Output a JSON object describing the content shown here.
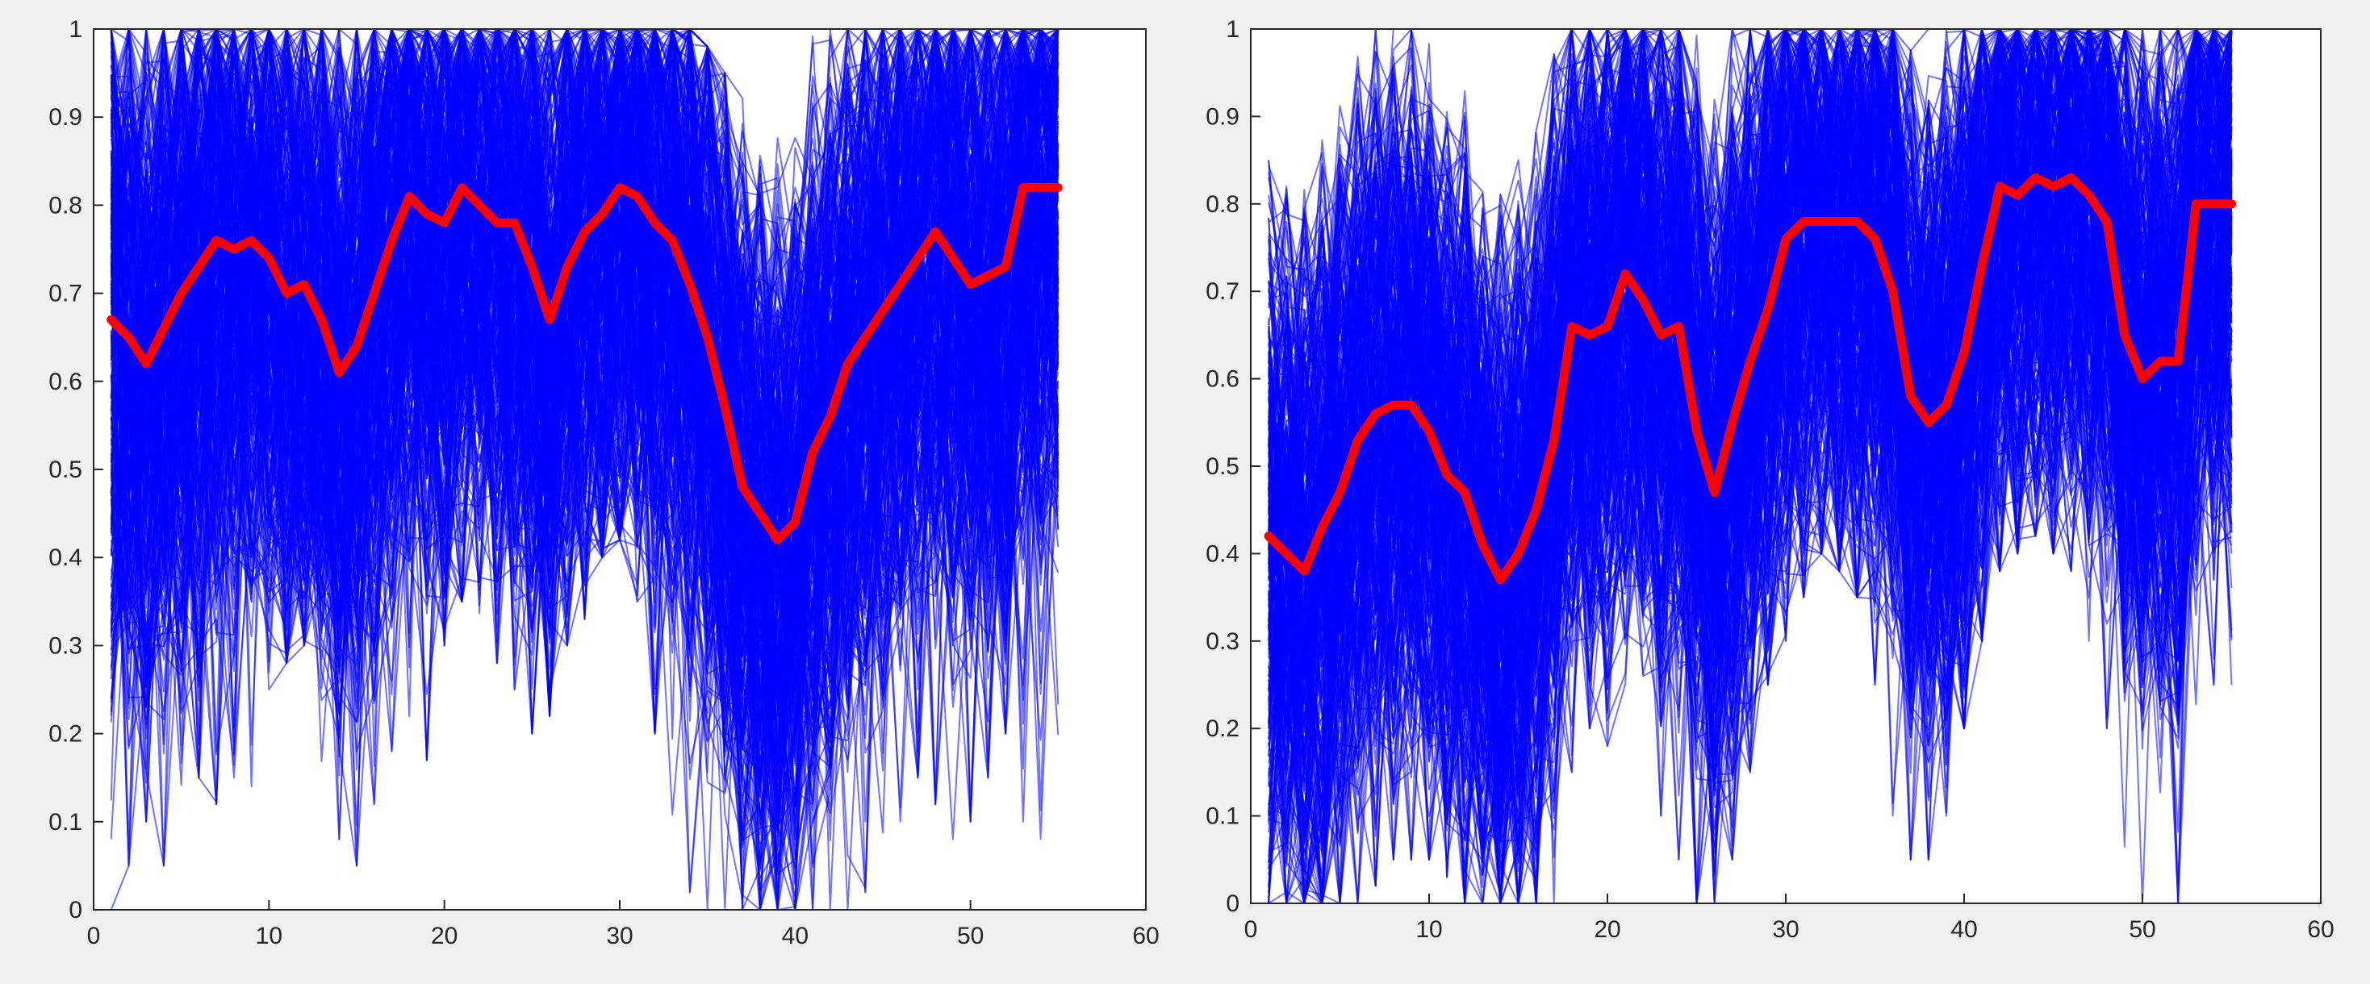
{
  "colors": {
    "samples": "#0000ff",
    "mean": "#ff0000",
    "panel_background": "#f0f0f0",
    "axes_background": "#ffffff"
  },
  "chart_data": [
    {
      "type": "line",
      "title": "",
      "xlabel": "",
      "ylabel": "",
      "xlim": [
        0,
        60
      ],
      "ylim": [
        0,
        1
      ],
      "xticks": [
        0,
        10,
        20,
        30,
        40,
        50,
        60
      ],
      "xtick_labels": [
        "0",
        "10",
        "20",
        "30",
        "40",
        "50",
        "60"
      ],
      "yticks": [
        0,
        0.1,
        0.2,
        0.3,
        0.4,
        0.5,
        0.6,
        0.7,
        0.8,
        0.9,
        1
      ],
      "ytick_labels": [
        "0",
        "0.1",
        "0.2",
        "0.3",
        "0.4",
        "0.5",
        "0.6",
        "0.7",
        "0.8",
        "0.9",
        "1"
      ],
      "grid": false,
      "legend": "none",
      "x": [
        1,
        2,
        3,
        4,
        5,
        6,
        7,
        8,
        9,
        10,
        11,
        12,
        13,
        14,
        15,
        16,
        17,
        18,
        19,
        20,
        21,
        22,
        23,
        24,
        25,
        26,
        27,
        28,
        29,
        30,
        31,
        32,
        33,
        34,
        35,
        36,
        37,
        38,
        39,
        40,
        41,
        42,
        43,
        44,
        45,
        46,
        47,
        48,
        49,
        50,
        51,
        52,
        53,
        54,
        55
      ],
      "series": [
        {
          "role": "mean",
          "color": "#ff0000",
          "values": [
            0.67,
            0.65,
            0.62,
            0.66,
            0.7,
            0.73,
            0.76,
            0.75,
            0.76,
            0.74,
            0.7,
            0.71,
            0.67,
            0.61,
            0.64,
            0.7,
            0.76,
            0.81,
            0.79,
            0.78,
            0.82,
            0.8,
            0.78,
            0.78,
            0.73,
            0.67,
            0.73,
            0.77,
            0.79,
            0.82,
            0.81,
            0.78,
            0.76,
            0.71,
            0.65,
            0.57,
            0.48,
            0.45,
            0.42,
            0.44,
            0.52,
            0.56,
            0.62,
            0.65,
            0.68,
            0.71,
            0.74,
            0.77,
            0.74,
            0.71,
            0.72,
            0.73,
            0.82,
            0.82,
            0.82
          ]
        },
        {
          "role": "samples",
          "color": "#0000ff",
          "count": 320,
          "min": [
            0.0,
            0.05,
            0.1,
            0.05,
            0.08,
            0.15,
            0.12,
            0.15,
            0.14,
            0.25,
            0.28,
            0.3,
            0.15,
            0.08,
            0.05,
            0.12,
            0.18,
            0.15,
            0.17,
            0.3,
            0.35,
            0.32,
            0.28,
            0.25,
            0.2,
            0.22,
            0.3,
            0.33,
            0.4,
            0.42,
            0.35,
            0.2,
            0.05,
            0.02,
            0.0,
            0.0,
            0.0,
            0.0,
            0.0,
            0.0,
            0.0,
            0.0,
            0.0,
            0.02,
            0.05,
            0.1,
            0.15,
            0.12,
            0.08,
            0.1,
            0.15,
            0.2,
            0.1,
            0.0,
            0.05
          ],
          "max": [
            1,
            1,
            1,
            1,
            1,
            1,
            1,
            1,
            1,
            1,
            1,
            1,
            1,
            1,
            1,
            1,
            1,
            1,
            1,
            1,
            1,
            1,
            1,
            1,
            1,
            1,
            1,
            1,
            1,
            1,
            1,
            1,
            1,
            1,
            0.98,
            0.95,
            0.93,
            0.9,
            0.9,
            0.95,
            1,
            1,
            1,
            1,
            1,
            1,
            1,
            1,
            1,
            1,
            1,
            1,
            1,
            1,
            1
          ]
        }
      ]
    },
    {
      "type": "line",
      "title": "",
      "xlabel": "",
      "ylabel": "",
      "xlim": [
        0,
        60
      ],
      "ylim": [
        0,
        1
      ],
      "xticks": [
        0,
        10,
        20,
        30,
        40,
        50,
        60
      ],
      "xtick_labels": [
        "0",
        "10",
        "20",
        "30",
        "40",
        "50",
        "60"
      ],
      "yticks": [
        0,
        0.1,
        0.2,
        0.3,
        0.4,
        0.5,
        0.6,
        0.7,
        0.8,
        0.9,
        1
      ],
      "ytick_labels": [
        "0",
        "0.1",
        "0.2",
        "0.3",
        "0.4",
        "0.5",
        "0.6",
        "0.7",
        "0.8",
        "0.9",
        "1"
      ],
      "grid": false,
      "legend": "none",
      "x": [
        1,
        2,
        3,
        4,
        5,
        6,
        7,
        8,
        9,
        10,
        11,
        12,
        13,
        14,
        15,
        16,
        17,
        18,
        19,
        20,
        21,
        22,
        23,
        24,
        25,
        26,
        27,
        28,
        29,
        30,
        31,
        32,
        33,
        34,
        35,
        36,
        37,
        38,
        39,
        40,
        41,
        42,
        43,
        44,
        45,
        46,
        47,
        48,
        49,
        50,
        51,
        52,
        53,
        54,
        55
      ],
      "series": [
        {
          "role": "mean",
          "color": "#ff0000",
          "values": [
            0.42,
            0.4,
            0.38,
            0.43,
            0.47,
            0.53,
            0.56,
            0.57,
            0.57,
            0.54,
            0.49,
            0.47,
            0.41,
            0.37,
            0.4,
            0.45,
            0.53,
            0.66,
            0.65,
            0.66,
            0.72,
            0.69,
            0.65,
            0.66,
            0.54,
            0.47,
            0.55,
            0.62,
            0.68,
            0.76,
            0.78,
            0.78,
            0.78,
            0.78,
            0.76,
            0.7,
            0.58,
            0.55,
            0.57,
            0.63,
            0.73,
            0.82,
            0.81,
            0.83,
            0.82,
            0.83,
            0.81,
            0.78,
            0.65,
            0.6,
            0.62,
            0.62,
            0.8,
            0.8,
            0.8
          ]
        },
        {
          "role": "samples",
          "color": "#0000ff",
          "count": 320,
          "min": [
            0.0,
            0.0,
            0.0,
            0.0,
            0.0,
            0.0,
            0.02,
            0.05,
            0.05,
            0.05,
            0.03,
            0.0,
            0.0,
            0.0,
            0.0,
            0.0,
            0.0,
            0.15,
            0.2,
            0.18,
            0.25,
            0.22,
            0.1,
            0.05,
            0.0,
            0.0,
            0.05,
            0.15,
            0.25,
            0.3,
            0.35,
            0.4,
            0.38,
            0.35,
            0.25,
            0.1,
            0.05,
            0.05,
            0.1,
            0.2,
            0.3,
            0.38,
            0.4,
            0.42,
            0.4,
            0.38,
            0.3,
            0.2,
            0.0,
            0.0,
            0.0,
            0.0,
            0.2,
            0.25,
            0.25
          ],
          "max": [
            0.85,
            0.85,
            0.95,
            0.9,
            0.95,
            1,
            1,
            1,
            1,
            1,
            1,
            1,
            0.98,
            0.95,
            0.98,
            1,
            1,
            1,
            1,
            1,
            1,
            1,
            1,
            1,
            1,
            0.95,
            1,
            1,
            1,
            1,
            1,
            1,
            1,
            1,
            1,
            1,
            1,
            1,
            1,
            1,
            1,
            1,
            1,
            1,
            1,
            1,
            1,
            1,
            1,
            1,
            1,
            1,
            1,
            1,
            1
          ]
        }
      ]
    }
  ]
}
